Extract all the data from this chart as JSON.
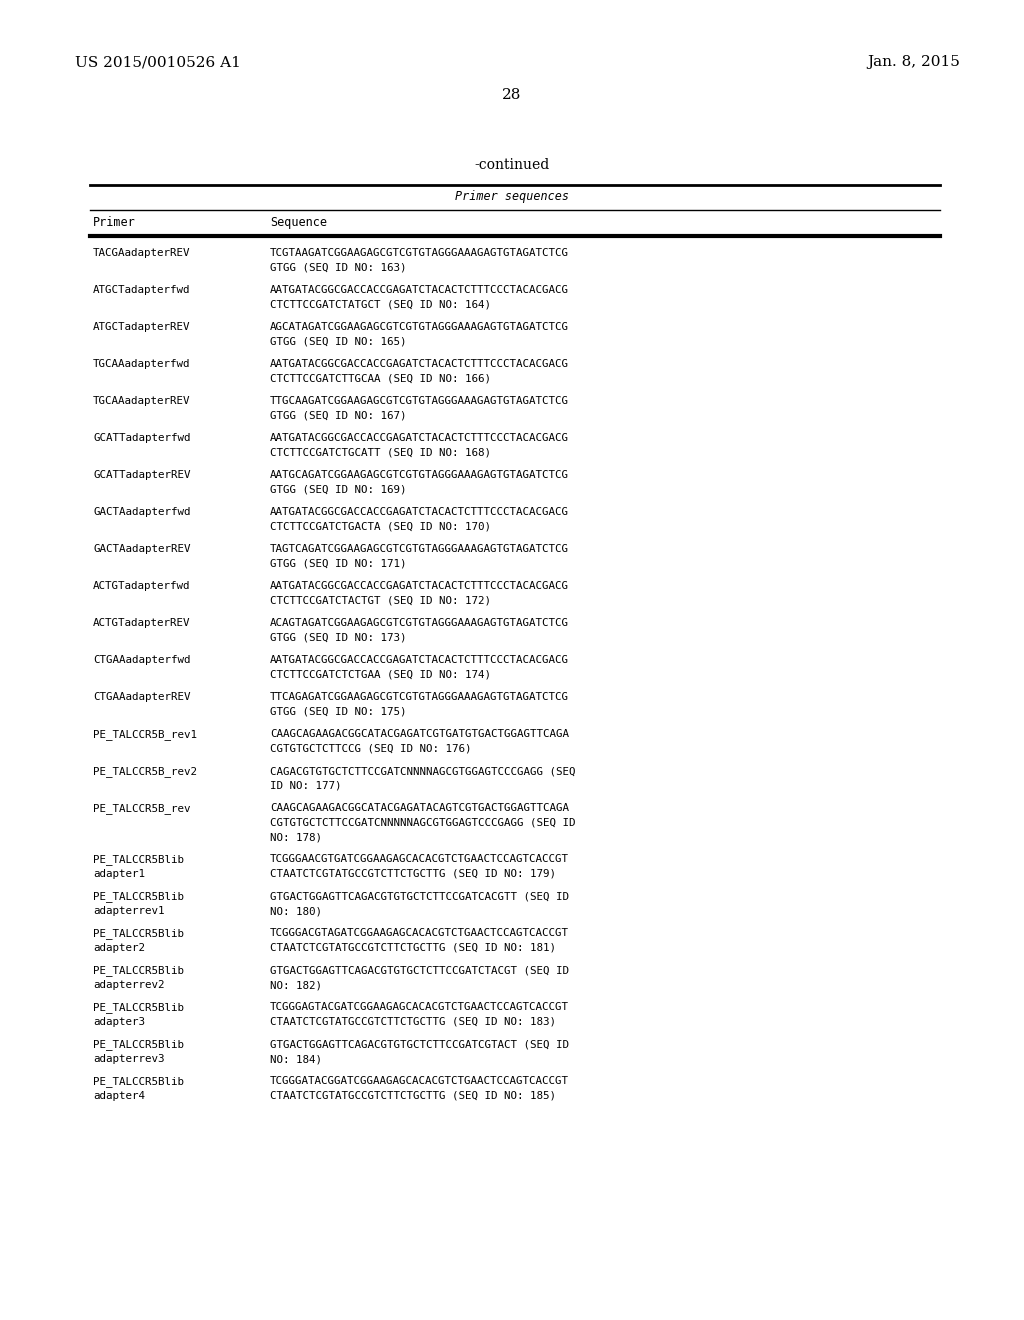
{
  "header_left": "US 2015/0010526 A1",
  "header_right": "Jan. 8, 2015",
  "page_number": "28",
  "continued": "-continued",
  "table_title": "Primer sequences",
  "col1_header": "Primer",
  "col2_header": "Sequence",
  "entries": [
    [
      "TACGAadapterREV",
      "TCGTAAGATCGGAAGAGCGTCGTGTAGGGAAAGAGTGTAGATCTCG\nGTGG (SEQ ID NO: 163)"
    ],
    [
      "ATGCTadapterfwd",
      "AATGATACGGCGACCACCGAGATCTACACTCTTTCCCTACACGACG\nCTCTTCCGATCTATGCT (SEQ ID NO: 164)"
    ],
    [
      "ATGCTadapterREV",
      "AGCATAGATCGGAAGAGCGTCGTGTAGGGAAAGAGTGTAGATCTCG\nGTGG (SEQ ID NO: 165)"
    ],
    [
      "TGCAAadapterfwd",
      "AATGATACGGCGACCACCGAGATCTACACTCTTTCCCTACACGACG\nCTCTTCCGATCTTGCAA (SEQ ID NO: 166)"
    ],
    [
      "TGCAAadapterREV",
      "TTGCAAGATCGGAAGAGCGTCGTGTAGGGAAAGAGTGTAGATCTCG\nGTGG (SEQ ID NO: 167)"
    ],
    [
      "GCATTadapterfwd",
      "AATGATACGGCGACCACCGAGATCTACACTCTTTCCCTACACGACG\nCTCTTCCGATCTGCATT (SEQ ID NO: 168)"
    ],
    [
      "GCATTadapterREV",
      "AATGCAGATCGGAAGAGCGTCGTGTAGGGAAAGAGTGTAGATCTCG\nGTGG (SEQ ID NO: 169)"
    ],
    [
      "GACTAadapterfwd",
      "AATGATACGGCGACCACCGAGATCTACACTCTTTCCCTACACGACG\nCTCTTCCGATCTGACTA (SEQ ID NO: 170)"
    ],
    [
      "GACTAadapterREV",
      "TAGTCAGATCGGAAGAGCGTCGTGTAGGGAAAGAGTGTAGATCTCG\nGTGG (SEQ ID NO: 171)"
    ],
    [
      "ACTGTadapterfwd",
      "AATGATACGGCGACCACCGAGATCTACACTCTTTCCCTACACGACG\nCTCTTCCGATCTACTGT (SEQ ID NO: 172)"
    ],
    [
      "ACTGTadapterREV",
      "ACAGTAGATCGGAAGAGCGTCGTGTAGGGAAAGAGTGTAGATCTCG\nGTGG (SEQ ID NO: 173)"
    ],
    [
      "CTGAAadapterfwd",
      "AATGATACGGCGACCACCGAGATCTACACTCTTTCCCTACACGACG\nCTCTTCCGATCTCTGAA (SEQ ID NO: 174)"
    ],
    [
      "CTGAAadapterREV",
      "TTCAGAGATCGGAAGAGCGTCGTGTAGGGAAAGAGTGTAGATCTCG\nGTGG (SEQ ID NO: 175)"
    ],
    [
      "PE_TALCCR5B_rev1",
      "CAAGCAGAAGACGGCATACGAGATCGTGATGTGACTGGAGTTCAGA\nCGTGTGCTCTTCCG (SEQ ID NO: 176)"
    ],
    [
      "PE_TALCCR5B_rev2",
      "CAGACGTGTGCTCTTCCGATCNNNNAGCGTGGAGTCCCGAGG (SEQ\nID NO: 177)"
    ],
    [
      "PE_TALCCR5B_rev",
      "CAAGCAGAAGACGGCATACGAGATACAGTCGTGACTGGAGTTCAGA\nCGTGTGCTCTTCCGATCNNNNNAGCGTGGAGTCCCGAGG (SEQ ID\nNO: 178)"
    ],
    [
      "PE_TALCCR5Blib\nadapter1",
      "TCGGGAACGTGATCGGAAGAGCACACGTCTGAACTCCAGTCACCGT\nCTAATCTCGTATGCCGTCTTCTGCTTG (SEQ ID NO: 179)"
    ],
    [
      "PE_TALCCR5Blib\nadapterrev1",
      "GTGACTGGAGTTCAGACGTGTGCTCTTCCGATCACGTT (SEQ ID\nNO: 180)"
    ],
    [
      "PE_TALCCR5Blib\nadapter2",
      "TCGGGACGTAGATCGGAAGAGCACACGTCTGAACTCCAGTCACCGT\nCTAATCTCGTATGCCGTCTTCTGCTTG (SEQ ID NO: 181)"
    ],
    [
      "PE_TALCCR5Blib\nadapterrev2",
      "GTGACTGGAGTTCAGACGTGTGCTCTTCCGATCTACGT (SEQ ID\nNO: 182)"
    ],
    [
      "PE_TALCCR5Blib\nadapter3",
      "TCGGGAGTACGATCGGAAGAGCACACGTCTGAACTCCAGTCACCGT\nCTAATCTCGTATGCCGTCTTCTGCTTG (SEQ ID NO: 183)"
    ],
    [
      "PE_TALCCR5Blib\nadapterrev3",
      "GTGACTGGAGTTCAGACGTGTGCTCTTCCGATCGTACT (SEQ ID\nNO: 184)"
    ],
    [
      "PE_TALCCR5Blib\nadapter4",
      "TCGGGATACGGATCGGAAGAGCACACGTCTGAACTCCAGTCACCGT\nCTAATCTCGTATGCCGTCTTCTGCTTG (SEQ ID NO: 185)"
    ]
  ],
  "bg_color": "#ffffff",
  "text_color": "#000000"
}
